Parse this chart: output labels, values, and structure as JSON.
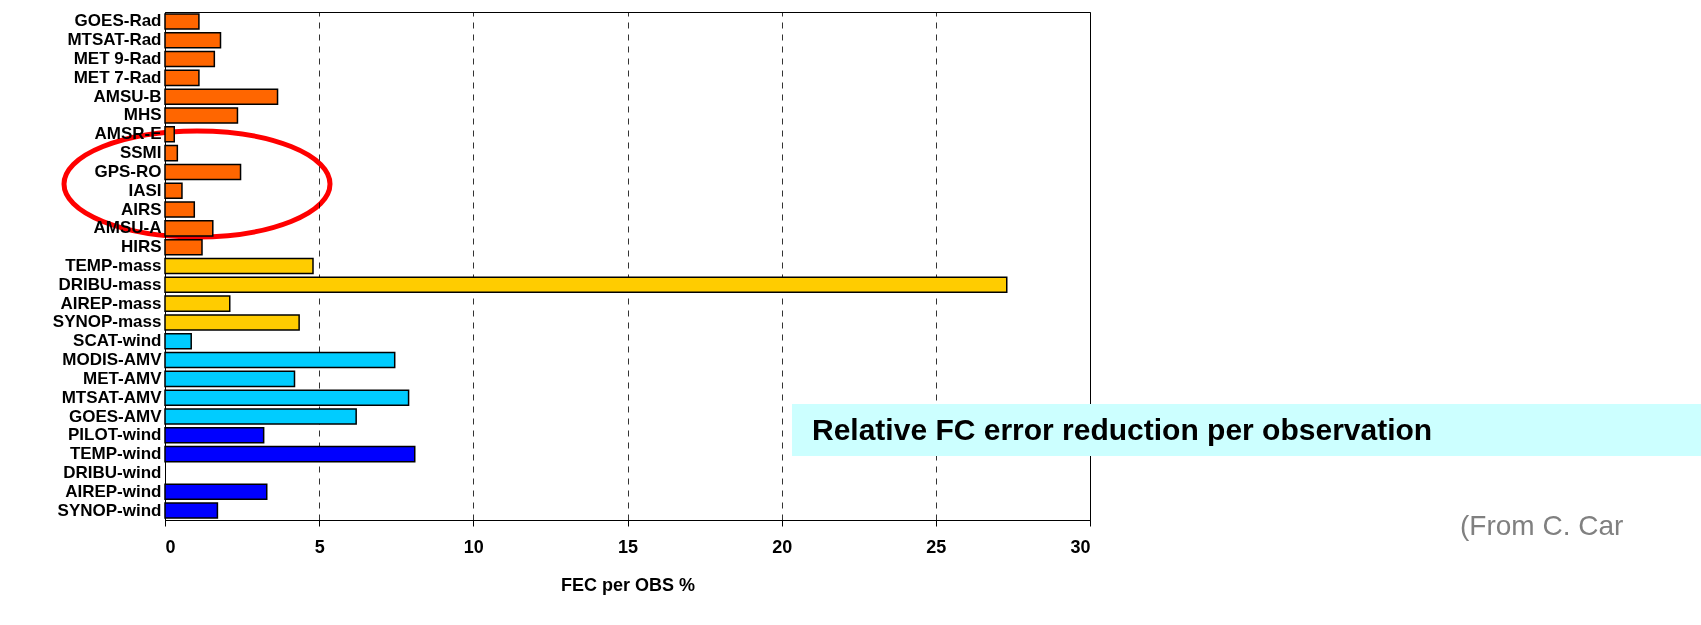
{
  "chart_data": {
    "type": "bar",
    "orientation": "horizontal",
    "xlabel": "FEC per OBS %",
    "categories": [
      "GOES-Rad",
      "MTSAT-Rad",
      "MET 9-Rad",
      "MET 7-Rad",
      "AMSU-B",
      "MHS",
      "AMSR-E",
      "SSMI",
      "GPS-RO",
      "IASI",
      "AIRS",
      "AMSU-A",
      "HIRS",
      "TEMP-mass",
      "DRIBU-mass",
      "AIREP-mass",
      "SYNOP-mass",
      "SCAT-wind",
      "MODIS-AMV",
      "MET-AMV",
      "MTSAT-AMV",
      "GOES-AMV",
      "PILOT-wind",
      "TEMP-wind",
      "DRIBU-wind",
      "AIREP-wind",
      "SYNOP-wind"
    ],
    "values": [
      1.1,
      1.8,
      1.6,
      1.1,
      3.65,
      2.35,
      0.3,
      0.4,
      2.45,
      0.55,
      0.95,
      1.55,
      1.2,
      4.8,
      27.3,
      2.1,
      4.35,
      0.85,
      7.45,
      4.2,
      7.9,
      6.2,
      3.2,
      8.1,
      null,
      3.3,
      1.7
    ],
    "colors": [
      "#ff6600",
      "#ff6600",
      "#ff6600",
      "#ff6600",
      "#ff6600",
      "#ff6600",
      "#ff6600",
      "#ff6600",
      "#ff6600",
      "#ff6600",
      "#ff6600",
      "#ff6600",
      "#ff6600",
      "#ffcc00",
      "#ffcc00",
      "#ffcc00",
      "#ffcc00",
      "#00ccff",
      "#00ccff",
      "#00ccff",
      "#00ccff",
      "#00ccff",
      "#0000ff",
      "#0000ff",
      null,
      "#0000ff",
      "#0000ff"
    ],
    "xlim": [
      0,
      30
    ],
    "xticks": [
      0,
      5,
      10,
      15,
      20,
      25,
      30
    ],
    "grid": "x",
    "annotations": [
      "Relative FC error reduction per observation",
      "(From C. Car"
    ]
  }
}
